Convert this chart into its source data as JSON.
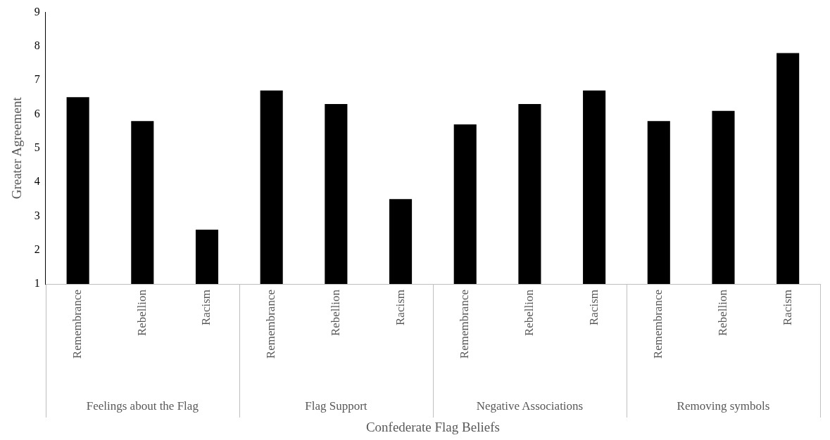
{
  "chart_data": {
    "type": "bar",
    "xlabel": "Confederate Flag Beliefs",
    "ylabel": "Greater Agreement",
    "categories": [
      "Remembrance",
      "Rebellion",
      "Racism",
      "Remembrance",
      "Rebellion",
      "Racism",
      "Remembrance",
      "Rebellion",
      "Racism",
      "Remembrance",
      "Rebellion",
      "Racism"
    ],
    "values": [
      6.5,
      5.8,
      2.6,
      6.7,
      6.3,
      3.5,
      5.7,
      6.3,
      6.7,
      5.8,
      6.1,
      7.8
    ],
    "color": "#000000",
    "ylim": [
      1,
      9
    ],
    "yticks": [
      1,
      2,
      3,
      4,
      5,
      6,
      7,
      8,
      9
    ],
    "annotations": [
      "Feelings about the Flag",
      "Flag Support",
      "Negative Associations",
      "Removing symbols"
    ],
    "grid": false,
    "legend": false
  }
}
